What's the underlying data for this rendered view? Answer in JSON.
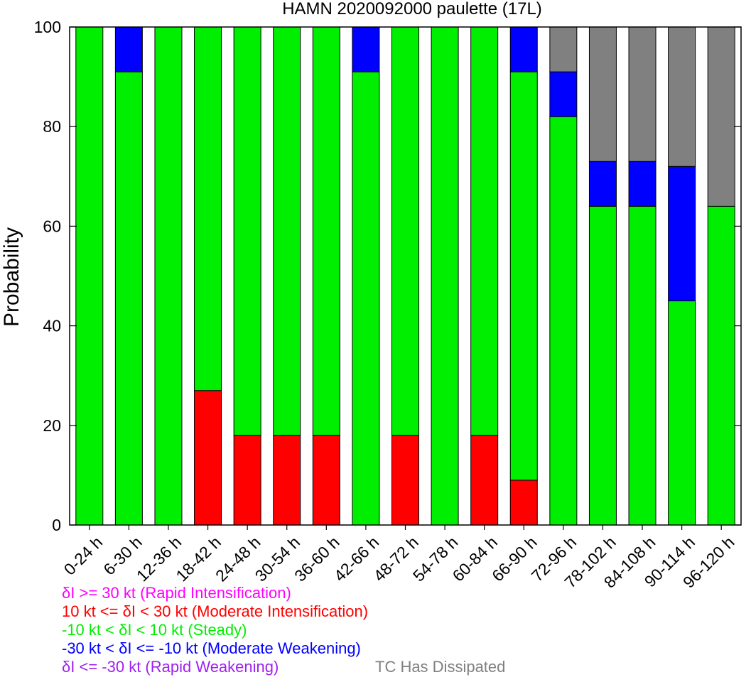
{
  "chart_data": {
    "type": "bar",
    "stacked": true,
    "title": "HAMN 2020092000 paulette (17L)",
    "xlabel": "",
    "ylabel": "Probability",
    "ylim": [
      0,
      100
    ],
    "yticks": [
      0,
      20,
      40,
      60,
      80,
      100
    ],
    "categories": [
      "0-24 h",
      "6-30 h",
      "12-36 h",
      "18-42 h",
      "24-48 h",
      "30-54 h",
      "36-60 h",
      "42-66 h",
      "48-72 h",
      "54-78 h",
      "60-84 h",
      "66-90 h",
      "72-96 h",
      "78-102 h",
      "84-108 h",
      "90-114 h",
      "96-120 h"
    ],
    "series": [
      {
        "name": "δI >= 30 kt (Rapid Intensification)",
        "color": "#ff00ff",
        "values": [
          0,
          0,
          0,
          0,
          0,
          0,
          0,
          0,
          0,
          0,
          0,
          0,
          0,
          0,
          0,
          0,
          0
        ]
      },
      {
        "name": "10 kt <= δI < 30 kt (Moderate Intensification)",
        "color": "#ff0000",
        "values": [
          0,
          0,
          0,
          27,
          18,
          18,
          18,
          0,
          18,
          0,
          18,
          9,
          0,
          0,
          0,
          0,
          0
        ]
      },
      {
        "name": "-10 kt < δI < 10 kt (Steady)",
        "color": "#00ee00",
        "values": [
          100,
          91,
          100,
          73,
          82,
          82,
          82,
          91,
          82,
          100,
          82,
          82,
          82,
          64,
          64,
          45,
          64
        ]
      },
      {
        "name": "-30 kt < δI <= -10 kt (Moderate Weakening)",
        "color": "#0000ff",
        "values": [
          0,
          9,
          0,
          0,
          0,
          0,
          0,
          9,
          0,
          0,
          0,
          9,
          9,
          9,
          9,
          27,
          0
        ]
      },
      {
        "name": "δI <= -30 kt (Rapid Weakening)",
        "color": "#a020f0",
        "values": [
          0,
          0,
          0,
          0,
          0,
          0,
          0,
          0,
          0,
          0,
          0,
          0,
          0,
          0,
          0,
          0,
          0
        ]
      },
      {
        "name": "TC Has Dissipated",
        "color": "#808080",
        "values": [
          0,
          0,
          0,
          0,
          0,
          0,
          0,
          0,
          0,
          0,
          0,
          0,
          9,
          27,
          27,
          28,
          36
        ]
      }
    ]
  }
}
